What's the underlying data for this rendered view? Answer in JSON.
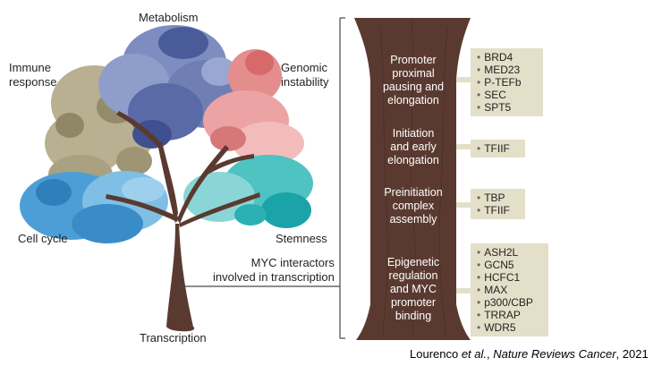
{
  "tree": {
    "labels": {
      "metabolism": "Metabolism",
      "immune_line1": "Immune",
      "immune_line2": "response",
      "genomic_line1": "Genomic",
      "genomic_line2": "instability",
      "cell_cycle": "Cell cycle",
      "stemness": "Stemness",
      "interactors_line1": "MYC interactors",
      "interactors_line2": "involved in transcription",
      "transcription": "Transcription"
    },
    "colors": {
      "metabolism": "#7e8dbf",
      "immune": "#b8b090",
      "genomic": "#e38d8d",
      "cell_cycle": "#4c9fd6",
      "stemness": "#4fc2c2",
      "trunk": "#5a3a30",
      "box": "#e4dfc8"
    }
  },
  "trunk_sections": [
    {
      "lines": [
        "Promoter",
        "proximal",
        "pausing and",
        "elongation"
      ],
      "items": [
        "BRD4",
        "MED23",
        "P-TEFb",
        "SEC",
        "SPT5"
      ]
    },
    {
      "lines": [
        "Initiation",
        "and early",
        "elongation"
      ],
      "items": [
        "TFIIF"
      ]
    },
    {
      "lines": [
        "Preinitiation",
        "complex",
        "assembly"
      ],
      "items": [
        "TBP",
        "TFIIF"
      ]
    },
    {
      "lines": [
        "Epigenetic",
        "regulation",
        "and MYC",
        "promoter",
        "binding"
      ],
      "items": [
        "ASH2L",
        "GCN5",
        "HCFC1",
        "MAX",
        "p300/CBP",
        "TRRAP",
        "WDR5"
      ]
    }
  ],
  "citation": {
    "authors": "Lourenco ",
    "etal": "et al.",
    "sep": ", ",
    "journal": "Nature Reviews Cancer",
    "year": ", 2021"
  }
}
